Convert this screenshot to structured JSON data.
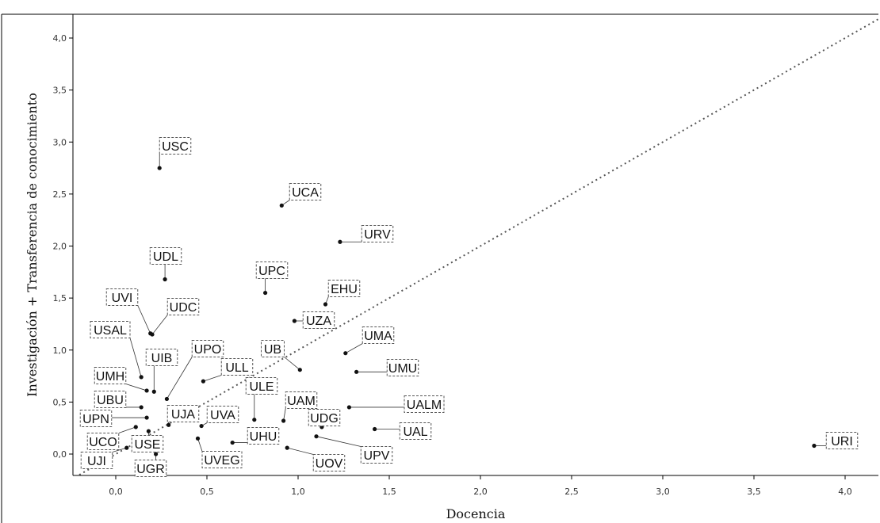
{
  "chart_data": {
    "type": "scatter",
    "title": "",
    "xlabel": "Docencia",
    "ylabel": "Investigación + Transferencia de conocimiento",
    "xlim": [
      -0.2,
      4.2
    ],
    "ylim": [
      -0.2,
      4.25
    ],
    "x_ticks": [
      "0,0",
      "0,5",
      "1,0",
      "1,5",
      "2,0",
      "2,5",
      "3,0",
      "3,5",
      "4,0"
    ],
    "y_ticks": [
      "0,0",
      "0,5",
      "1,0",
      "1,5",
      "2,0",
      "2,5",
      "3,0",
      "3,5",
      "4,0"
    ],
    "reference_line": "y = x",
    "grid": false,
    "points": [
      {
        "label": "USC",
        "x": 0.24,
        "y": 2.75
      },
      {
        "label": "UCA",
        "x": 0.91,
        "y": 2.39
      },
      {
        "label": "URV",
        "x": 1.23,
        "y": 2.04
      },
      {
        "label": "UDL",
        "x": 0.27,
        "y": 1.68
      },
      {
        "label": "UPC",
        "x": 0.82,
        "y": 1.55
      },
      {
        "label": "EHU",
        "x": 1.15,
        "y": 1.44
      },
      {
        "label": "UZA",
        "x": 0.98,
        "y": 1.28
      },
      {
        "label": "UVI",
        "x": 0.19,
        "y": 1.16
      },
      {
        "label": "UDC",
        "x": 0.2,
        "y": 1.15
      },
      {
        "label": "UMA",
        "x": 1.26,
        "y": 0.97
      },
      {
        "label": "UB",
        "x": 1.01,
        "y": 0.81
      },
      {
        "label": "UMU",
        "x": 1.32,
        "y": 0.79
      },
      {
        "label": "USAL",
        "x": 0.14,
        "y": 0.74
      },
      {
        "label": "UMH",
        "x": 0.17,
        "y": 0.61
      },
      {
        "label": "UIB",
        "x": 0.21,
        "y": 0.6
      },
      {
        "label": "ULL",
        "x": 0.48,
        "y": 0.7
      },
      {
        "label": "UPO",
        "x": 0.28,
        "y": 0.53
      },
      {
        "label": "UBU",
        "x": 0.14,
        "y": 0.45
      },
      {
        "label": "UALM",
        "x": 1.28,
        "y": 0.45
      },
      {
        "label": "UPN",
        "x": 0.17,
        "y": 0.35
      },
      {
        "label": "ULE",
        "x": 0.76,
        "y": 0.33
      },
      {
        "label": "UAM",
        "x": 0.92,
        "y": 0.32
      },
      {
        "label": "UJA",
        "x": 0.29,
        "y": 0.28
      },
      {
        "label": "UVA",
        "x": 0.47,
        "y": 0.27
      },
      {
        "label": "UDG",
        "x": 1.13,
        "y": 0.26
      },
      {
        "label": "UAL",
        "x": 1.42,
        "y": 0.24
      },
      {
        "label": "UCO",
        "x": 0.11,
        "y": 0.26
      },
      {
        "label": "USE",
        "x": 0.18,
        "y": 0.22
      },
      {
        "label": "UPV",
        "x": 1.1,
        "y": 0.17
      },
      {
        "label": "UVEG",
        "x": 0.45,
        "y": 0.15
      },
      {
        "label": "UHU",
        "x": 0.64,
        "y": 0.11
      },
      {
        "label": "UOV",
        "x": 0.94,
        "y": 0.06
      },
      {
        "label": "URI",
        "x": 3.83,
        "y": 0.08
      },
      {
        "label": "UJI",
        "x": 0.06,
        "y": 0.06
      },
      {
        "label": "UGR",
        "x": 0.22,
        "y": 0.0
      }
    ]
  }
}
